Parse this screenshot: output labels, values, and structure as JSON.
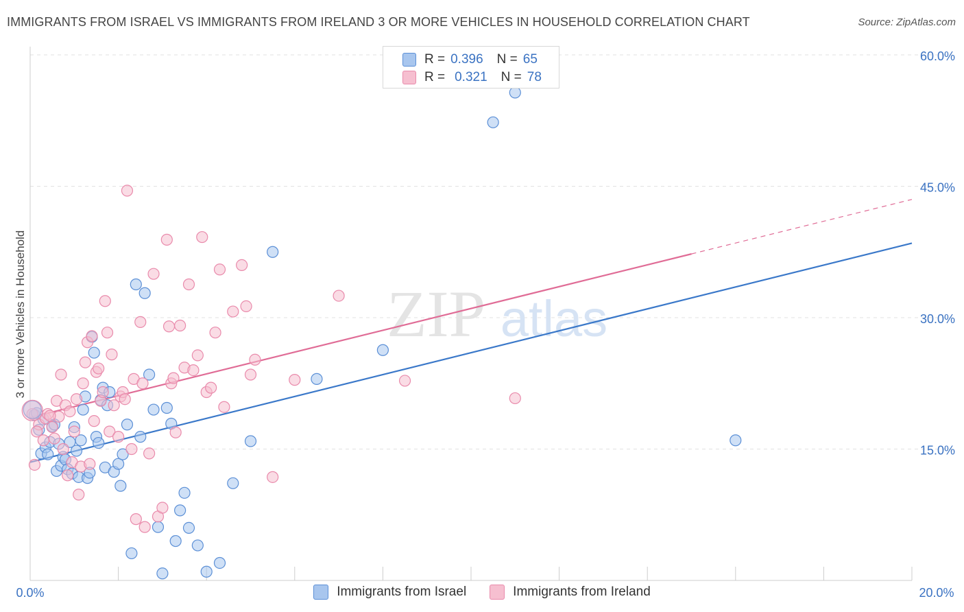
{
  "title": "IMMIGRANTS FROM ISRAEL VS IMMIGRANTS FROM IRELAND 3 OR MORE VEHICLES IN HOUSEHOLD CORRELATION CHART",
  "source": "Source: ZipAtlas.com",
  "watermark": {
    "zip": "ZIP",
    "atlas": "atlas"
  },
  "legend": {
    "israel": {
      "r_label": "R =",
      "r_value": "0.396",
      "n_label": "N =",
      "n_value": "65"
    },
    "ireland": {
      "r_label": "R =",
      "r_value": "0.321",
      "n_label": "N =",
      "n_value": "78"
    }
  },
  "colors": {
    "israel_fill": "#a8c6ee",
    "israel_stroke": "#5b8fd6",
    "israel_line": "#3a78c9",
    "ireland_fill": "#f6bfd0",
    "ireland_stroke": "#e98aab",
    "ireland_line": "#e06c96",
    "tick_label": "#3a72c2"
  },
  "chart_data": {
    "type": "scatter",
    "title": "IMMIGRANTS FROM ISRAEL VS IMMIGRANTS FROM IRELAND 3 OR MORE VEHICLES IN HOUSEHOLD CORRELATION CHART",
    "xlabel": "",
    "ylabel": "3 or more Vehicles in Household",
    "xlim": [
      0,
      20
    ],
    "ylim": [
      0,
      60
    ],
    "x_tick_labels": [
      "0.0%",
      "20.0%"
    ],
    "y_ticks": [
      15,
      30,
      45,
      60
    ],
    "y_tick_labels": [
      "15.0%",
      "30.0%",
      "45.0%",
      "60.0%"
    ],
    "grid": true,
    "legend_position": "top-center",
    "series": [
      {
        "name": "Immigrants from Israel",
        "color": "#5b8fd6",
        "trend": {
          "x": [
            0,
            20
          ],
          "y": [
            13.5,
            38.5
          ],
          "dashed_from_x": null
        },
        "points": [
          [
            0.1,
            18.9
          ],
          [
            0.15,
            19.1
          ],
          [
            0.2,
            17.2
          ],
          [
            0.25,
            14.5
          ],
          [
            0.3,
            18.4
          ],
          [
            0.35,
            15.2
          ],
          [
            0.4,
            14.4
          ],
          [
            0.45,
            15.8
          ],
          [
            0.5,
            17.6
          ],
          [
            0.55,
            17.8
          ],
          [
            0.6,
            12.5
          ],
          [
            0.65,
            15.6
          ],
          [
            0.7,
            13.1
          ],
          [
            0.75,
            14.1
          ],
          [
            0.8,
            13.8
          ],
          [
            0.85,
            12.7
          ],
          [
            0.9,
            15.8
          ],
          [
            0.95,
            12.2
          ],
          [
            1.0,
            17.5
          ],
          [
            1.05,
            14.8
          ],
          [
            1.1,
            11.8
          ],
          [
            1.15,
            16.0
          ],
          [
            1.2,
            19.5
          ],
          [
            1.25,
            21.0
          ],
          [
            1.3,
            11.7
          ],
          [
            1.35,
            12.3
          ],
          [
            1.4,
            27.8
          ],
          [
            1.45,
            26.0
          ],
          [
            1.5,
            16.4
          ],
          [
            1.55,
            15.7
          ],
          [
            1.6,
            20.6
          ],
          [
            1.65,
            22.0
          ],
          [
            1.7,
            12.9
          ],
          [
            1.75,
            20.0
          ],
          [
            1.8,
            21.5
          ],
          [
            1.9,
            12.4
          ],
          [
            2.0,
            13.3
          ],
          [
            2.05,
            10.8
          ],
          [
            2.1,
            14.4
          ],
          [
            2.2,
            17.8
          ],
          [
            2.3,
            3.1
          ],
          [
            2.4,
            33.8
          ],
          [
            2.5,
            16.4
          ],
          [
            2.6,
            32.8
          ],
          [
            2.7,
            23.5
          ],
          [
            2.8,
            19.5
          ],
          [
            2.9,
            6.1
          ],
          [
            3.0,
            0.8
          ],
          [
            3.1,
            19.7
          ],
          [
            3.2,
            17.9
          ],
          [
            3.3,
            4.5
          ],
          [
            3.4,
            8.0
          ],
          [
            3.5,
            10.0
          ],
          [
            3.6,
            6.0
          ],
          [
            3.8,
            4.0
          ],
          [
            4.0,
            1.0
          ],
          [
            4.3,
            2.0
          ],
          [
            4.6,
            11.1
          ],
          [
            5.0,
            15.9
          ],
          [
            5.5,
            37.5
          ],
          [
            6.5,
            23.0
          ],
          [
            8.0,
            26.3
          ],
          [
            10.5,
            52.3
          ],
          [
            11.0,
            55.7
          ],
          [
            16.0,
            16.0
          ]
        ]
      },
      {
        "name": "Immigrants from Ireland",
        "color": "#e98aab",
        "trend": {
          "x": [
            0,
            20
          ],
          "y": [
            18.6,
            43.5
          ],
          "dashed_from_x": 15
        },
        "points": [
          [
            0.1,
            13.2
          ],
          [
            0.2,
            17.8
          ],
          [
            0.3,
            16.0
          ],
          [
            0.35,
            18.5
          ],
          [
            0.4,
            19.0
          ],
          [
            0.5,
            17.5
          ],
          [
            0.55,
            16.2
          ],
          [
            0.6,
            20.5
          ],
          [
            0.65,
            18.7
          ],
          [
            0.7,
            23.5
          ],
          [
            0.75,
            15.0
          ],
          [
            0.8,
            20.0
          ],
          [
            0.85,
            12.0
          ],
          [
            0.9,
            19.3
          ],
          [
            0.95,
            13.5
          ],
          [
            1.0,
            17.0
          ],
          [
            1.05,
            20.7
          ],
          [
            1.1,
            9.8
          ],
          [
            1.15,
            13.0
          ],
          [
            1.2,
            22.5
          ],
          [
            1.25,
            24.9
          ],
          [
            1.3,
            27.2
          ],
          [
            1.35,
            13.3
          ],
          [
            1.4,
            27.9
          ],
          [
            1.5,
            23.8
          ],
          [
            1.55,
            24.2
          ],
          [
            1.6,
            20.5
          ],
          [
            1.65,
            21.5
          ],
          [
            1.7,
            31.9
          ],
          [
            1.75,
            28.3
          ],
          [
            1.8,
            17.0
          ],
          [
            1.85,
            25.8
          ],
          [
            1.9,
            20.0
          ],
          [
            2.0,
            16.4
          ],
          [
            2.05,
            21.0
          ],
          [
            2.1,
            21.5
          ],
          [
            2.2,
            44.5
          ],
          [
            2.3,
            15.0
          ],
          [
            2.35,
            23.0
          ],
          [
            2.4,
            7.0
          ],
          [
            2.5,
            29.5
          ],
          [
            2.55,
            22.5
          ],
          [
            2.6,
            6.1
          ],
          [
            2.7,
            14.5
          ],
          [
            2.8,
            35.0
          ],
          [
            2.9,
            7.3
          ],
          [
            3.0,
            8.3
          ],
          [
            3.1,
            38.9
          ],
          [
            3.15,
            29.0
          ],
          [
            3.2,
            22.5
          ],
          [
            3.3,
            16.9
          ],
          [
            3.4,
            29.1
          ],
          [
            3.5,
            24.3
          ],
          [
            3.6,
            33.8
          ],
          [
            3.7,
            24.0
          ],
          [
            3.8,
            25.7
          ],
          [
            3.9,
            39.2
          ],
          [
            4.0,
            21.5
          ],
          [
            4.2,
            28.3
          ],
          [
            4.3,
            35.5
          ],
          [
            4.4,
            19.8
          ],
          [
            4.6,
            30.7
          ],
          [
            4.8,
            36.0
          ],
          [
            4.9,
            31.3
          ],
          [
            5.0,
            23.5
          ],
          [
            5.1,
            25.2
          ],
          [
            5.5,
            11.8
          ],
          [
            6.0,
            22.9
          ],
          [
            7.0,
            32.5
          ],
          [
            8.5,
            22.8
          ],
          [
            11.0,
            20.8
          ],
          [
            0.05,
            19.0
          ],
          [
            0.15,
            17.0
          ],
          [
            0.45,
            18.8
          ],
          [
            1.45,
            18.2
          ],
          [
            2.15,
            20.7
          ],
          [
            3.25,
            23.1
          ],
          [
            4.1,
            22.0
          ]
        ]
      }
    ]
  },
  "bottom_legend": {
    "israel_label": "Immigrants from Israel",
    "ireland_label": "Immigrants from Ireland"
  }
}
